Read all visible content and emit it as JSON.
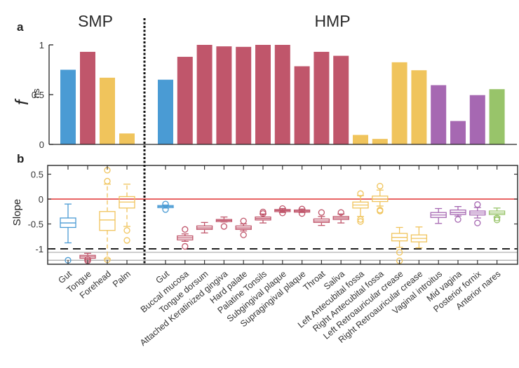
{
  "colors": {
    "gut": "#4a9bd4",
    "oral": "#c0566b",
    "skin": "#f0c45c",
    "vaginal": "#a668b2",
    "nasal": "#98c46a",
    "zero_line": "#e03030",
    "ref_dash": "#222222",
    "grey_line": "#b0b0b0"
  },
  "chart_data": [
    {
      "type": "bar",
      "panel": "a",
      "panel_label": "a",
      "ylabel": "f",
      "ylabel_subscript": "ns",
      "ylim": [
        0,
        1
      ],
      "yticks": [
        0,
        0.5,
        1
      ],
      "ytick_labels": [
        "0",
        "0.5",
        "1"
      ],
      "groups": [
        {
          "title": "SMP",
          "categories": [
            "Gut",
            "Tongue",
            "Forehead",
            "Palm"
          ],
          "values": [
            0.75,
            0.93,
            0.67,
            0.11
          ],
          "color_keys": [
            "gut",
            "oral",
            "skin",
            "skin"
          ]
        },
        {
          "title": "HMP",
          "categories": [
            "Gut",
            "Buccal mucosa",
            "Tongue dorsum",
            "Attached Keratinized gingiva",
            "Hard palate",
            "Palatine Tonsils",
            "Subgingival plaque",
            "Supragingival plaque",
            "Throat",
            "Saliva",
            "Left Antecubital fossa",
            "Right Antecubital fossa",
            "Left Retroauricular crease",
            "Right Retroauricular crease",
            "Vaginal introitus",
            "Mid vagina",
            "Posterior fornix",
            "Anterior nares"
          ],
          "values": [
            0.65,
            0.88,
            1.0,
            0.985,
            0.98,
            1.0,
            1.0,
            0.785,
            0.93,
            0.89,
            0.095,
            0.055,
            0.825,
            0.745,
            0.595,
            0.235,
            0.495,
            0.555
          ],
          "color_keys": [
            "gut",
            "oral",
            "oral",
            "oral",
            "oral",
            "oral",
            "oral",
            "oral",
            "oral",
            "oral",
            "skin",
            "skin",
            "skin",
            "skin",
            "vaginal",
            "vaginal",
            "vaginal",
            "nasal"
          ]
        }
      ]
    },
    {
      "type": "box",
      "panel": "b",
      "panel_label": "b",
      "ylabel": "Slope",
      "ylim": [
        -1.3,
        0.68
      ],
      "yticks": [
        -1,
        -0.5,
        0,
        0.5
      ],
      "ytick_labels": [
        "-1",
        "-0.5",
        "0",
        "0.5"
      ],
      "reference_lines": [
        {
          "y": 0,
          "style": "solid",
          "color_key": "zero_line"
        },
        {
          "y": -1,
          "style": "dashed",
          "color_key": "ref_dash"
        },
        {
          "y": -1.07,
          "style": "solid",
          "color_key": "grey_line"
        },
        {
          "y": -1.23,
          "style": "solid",
          "color_key": "grey_line"
        }
      ],
      "categories": [
        "Gut",
        "Tongue",
        "Forehead",
        "Palm",
        "Gut",
        "Buccal mucosa",
        "Tongue dorsum",
        "Attached Keratinized gingiva",
        "Hard palate",
        "Palatine Tonsils",
        "Subgingival plaque",
        "Supragingival plaque",
        "Throat",
        "Saliva",
        "Left Antecubital fossa",
        "Right Antecubital fossa",
        "Left Retroauricular crease",
        "Right Retroauricular crease",
        "Vaginal introitus",
        "Mid vagina",
        "Posterior fornix",
        "Anterior nares"
      ],
      "color_keys": [
        "gut",
        "oral",
        "skin",
        "skin",
        "gut",
        "oral",
        "oral",
        "oral",
        "oral",
        "oral",
        "oral",
        "oral",
        "oral",
        "oral",
        "skin",
        "skin",
        "skin",
        "skin",
        "vaginal",
        "vaginal",
        "vaginal",
        "nasal"
      ],
      "boxes": [
        {
          "whisker_low": -0.88,
          "q1": -0.57,
          "median": -0.48,
          "q3": -0.38,
          "whisker_high": -0.1,
          "outliers": [
            -1.23
          ]
        },
        {
          "whisker_low": -1.22,
          "q1": -1.19,
          "median": -1.16,
          "q3": -1.13,
          "whisker_high": -1.09,
          "outliers": [
            -1.21,
            -1.24
          ]
        },
        {
          "whisker_low": -1.2,
          "q1": -0.63,
          "median": -0.42,
          "q3": -0.25,
          "whisker_high": 0.3,
          "outliers": [
            0.58,
            0.36,
            -1.22
          ]
        },
        {
          "whisker_low": -0.55,
          "q1": -0.18,
          "median": -0.06,
          "q3": 0.05,
          "whisker_high": 0.3,
          "outliers": [
            -0.63,
            -0.83
          ]
        },
        {
          "whisker_low": -0.18,
          "q1": -0.17,
          "median": -0.15,
          "q3": -0.13,
          "whisker_high": -0.12,
          "outliers": [
            -0.1,
            -0.21
          ]
        },
        {
          "whisker_low": -0.85,
          "q1": -0.82,
          "median": -0.78,
          "q3": -0.74,
          "whisker_high": -0.7,
          "outliers": [
            -0.61,
            -0.95
          ]
        },
        {
          "whisker_low": -0.68,
          "q1": -0.61,
          "median": -0.58,
          "q3": -0.54,
          "whisker_high": -0.47,
          "outliers": []
        },
        {
          "whisker_low": -0.46,
          "q1": -0.45,
          "median": -0.43,
          "q3": -0.41,
          "whisker_high": -0.36,
          "outliers": [
            -0.55
          ]
        },
        {
          "whisker_low": -0.64,
          "q1": -0.61,
          "median": -0.58,
          "q3": -0.54,
          "whisker_high": -0.5,
          "outliers": [
            -0.44,
            -0.72
          ]
        },
        {
          "whisker_low": -0.48,
          "q1": -0.42,
          "median": -0.39,
          "q3": -0.36,
          "whisker_high": -0.3,
          "outliers": [
            -0.26,
            -0.29
          ]
        },
        {
          "whisker_low": -0.27,
          "q1": -0.25,
          "median": -0.23,
          "q3": -0.21,
          "whisker_high": -0.19,
          "outliers": [
            -0.19,
            -0.28
          ]
        },
        {
          "whisker_low": -0.27,
          "q1": -0.25,
          "median": -0.24,
          "q3": -0.22,
          "whisker_high": -0.2,
          "outliers": [
            -0.2,
            -0.29
          ]
        },
        {
          "whisker_low": -0.53,
          "q1": -0.47,
          "median": -0.44,
          "q3": -0.4,
          "whisker_high": -0.35,
          "outliers": [
            -0.27
          ]
        },
        {
          "whisker_low": -0.48,
          "q1": -0.41,
          "median": -0.38,
          "q3": -0.35,
          "whisker_high": -0.3,
          "outliers": [
            -0.27
          ]
        },
        {
          "whisker_low": -0.35,
          "q1": -0.18,
          "median": -0.12,
          "q3": -0.06,
          "whisker_high": 0.07,
          "outliers": [
            0.11,
            -0.41,
            -0.45
          ]
        },
        {
          "whisker_low": -0.14,
          "q1": -0.05,
          "median": 0.0,
          "q3": 0.06,
          "whisker_high": 0.18,
          "outliers": [
            0.26,
            -0.22,
            -0.24
          ]
        },
        {
          "whisker_low": -0.97,
          "q1": -0.84,
          "median": -0.77,
          "q3": -0.69,
          "whisker_high": -0.57,
          "outliers": [
            -1.07,
            -1.24
          ]
        },
        {
          "whisker_low": -0.98,
          "q1": -0.86,
          "median": -0.79,
          "q3": -0.72,
          "whisker_high": -0.56,
          "outliers": []
        },
        {
          "whisker_low": -0.49,
          "q1": -0.37,
          "median": -0.32,
          "q3": -0.27,
          "whisker_high": -0.19,
          "outliers": []
        },
        {
          "whisker_low": -0.34,
          "q1": -0.31,
          "median": -0.27,
          "q3": -0.22,
          "whisker_high": -0.15,
          "outliers": [
            -0.41
          ]
        },
        {
          "whisker_low": -0.38,
          "q1": -0.32,
          "median": -0.28,
          "q3": -0.24,
          "whisker_high": -0.17,
          "outliers": [
            -0.11,
            -0.48
          ]
        },
        {
          "whisker_low": -0.36,
          "q1": -0.31,
          "median": -0.28,
          "q3": -0.24,
          "whisker_high": -0.18,
          "outliers": [
            -0.38,
            -0.42
          ]
        }
      ]
    }
  ]
}
